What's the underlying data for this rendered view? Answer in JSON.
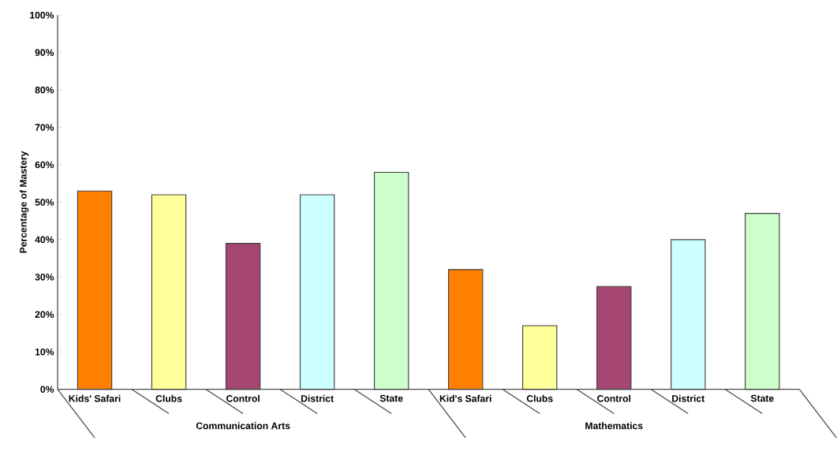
{
  "chart_data": {
    "type": "bar",
    "ylabel": "Percentage of Mastery",
    "categories": [
      "Kids' Safari",
      "Clubs",
      "Control",
      "District",
      "State",
      "Kid's Safari",
      "Clubs",
      "Control",
      "District",
      "State"
    ],
    "values": [
      53,
      52,
      39,
      52,
      58,
      32,
      17,
      27.5,
      40,
      47
    ],
    "colors": [
      "#ff8000",
      "#ffff99",
      "#a54673",
      "#ccffff",
      "#ccffcc",
      "#ff8000",
      "#ffff99",
      "#a54673",
      "#ccffff",
      "#ccffcc"
    ],
    "annotations": [
      "Communication Arts",
      "Mathematics"
    ],
    "ylim": [
      0,
      100
    ],
    "yticks": [
      {
        "value": 0,
        "label": "0%"
      },
      {
        "value": 10,
        "label": "10%"
      },
      {
        "value": 20,
        "label": "20%"
      },
      {
        "value": 30,
        "label": "30%"
      },
      {
        "value": 40,
        "label": "40%"
      },
      {
        "value": 50,
        "label": "50%"
      },
      {
        "value": 60,
        "label": "60%"
      },
      {
        "value": 70,
        "label": "70%"
      },
      {
        "value": 80,
        "label": "80%"
      },
      {
        "value": 90,
        "label": "90%"
      },
      {
        "value": 100,
        "label": "100%"
      }
    ]
  }
}
